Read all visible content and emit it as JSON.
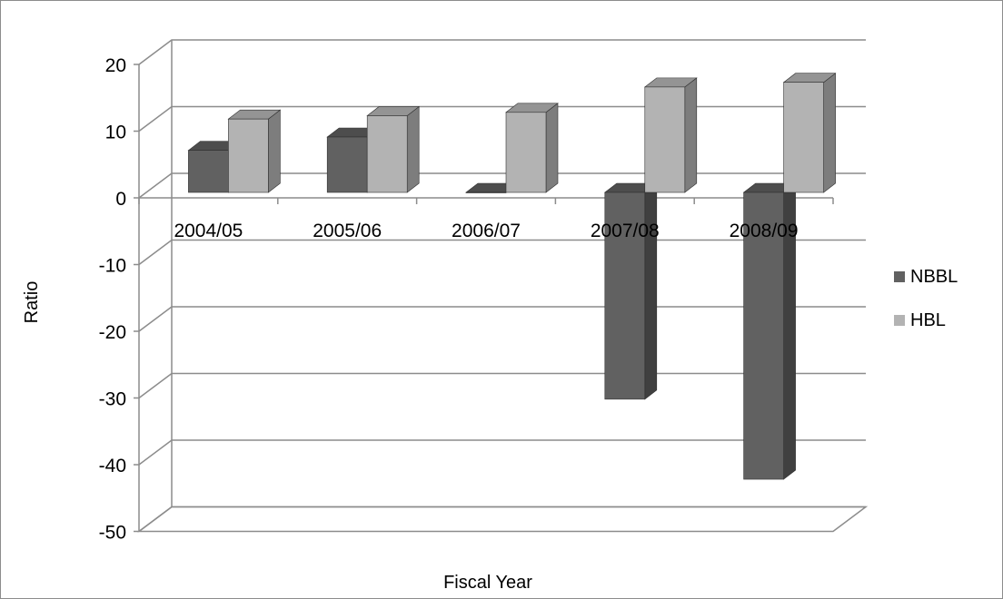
{
  "chart_data": {
    "type": "bar",
    "style": "3d-clustered-column",
    "title": "",
    "xlabel": "Fiscal Year",
    "ylabel": "Ratio",
    "categories": [
      "2004/05",
      "2005/06",
      "2006/07",
      "2007/08",
      "2008/09"
    ],
    "series": [
      {
        "name": "NBBL",
        "values": [
          6.3,
          8.3,
          0,
          -31,
          -43
        ],
        "color": "#616161"
      },
      {
        "name": "HBL",
        "values": [
          11,
          11.5,
          12,
          15.8,
          16.5
        ],
        "color": "#b3b3b3"
      }
    ],
    "ylim": [
      -50,
      20
    ],
    "yticks": [
      "20",
      "10",
      "0",
      "-10",
      "-20",
      "-30",
      "-40",
      "-50"
    ],
    "grid": true,
    "legend": "right"
  }
}
